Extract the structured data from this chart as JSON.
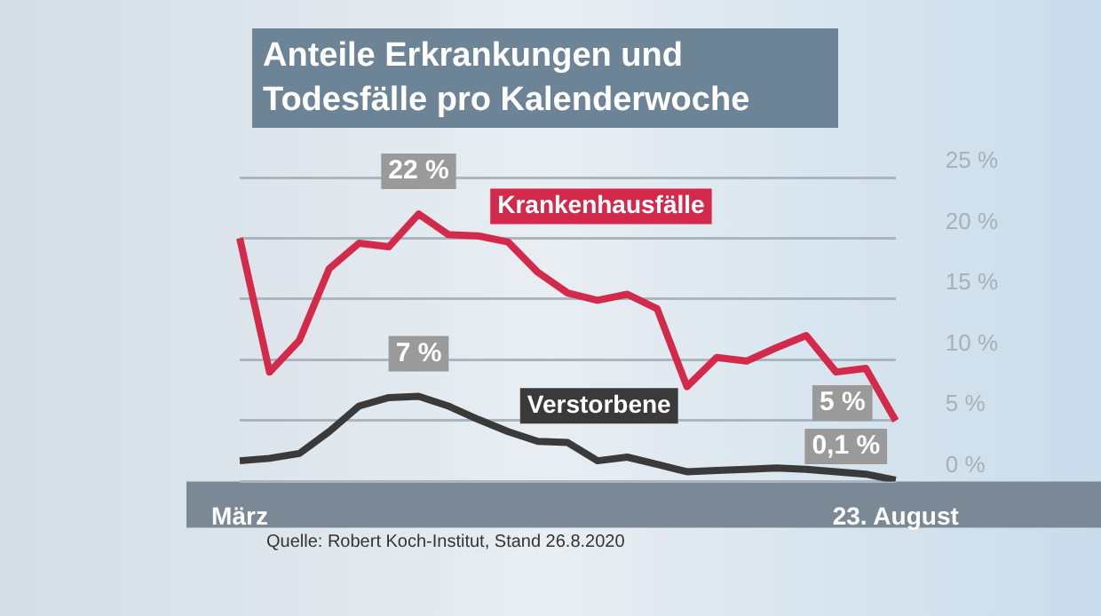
{
  "chart_data": {
    "type": "line",
    "title": "Anteile Erkrankungen und Todesfälle pro Kalenderwoche",
    "categories": [
      "März",
      null,
      null,
      null,
      null,
      null,
      null,
      null,
      null,
      null,
      null,
      null,
      null,
      null,
      null,
      null,
      null,
      null,
      null,
      null,
      null,
      null,
      "23. August"
    ],
    "series": [
      {
        "name": "Krankenhausfälle",
        "color": "#d3294b",
        "values": [
          20,
          9,
          11.6,
          17.5,
          19.6,
          19.3,
          22,
          20.3,
          20.2,
          19.7,
          17.2,
          15.5,
          14.9,
          15.4,
          14.2,
          7.8,
          10.2,
          9.9,
          11,
          12,
          9,
          9.3,
          5
        ],
        "value_labels": [
          null,
          null,
          null,
          null,
          null,
          null,
          "22 %",
          null,
          null,
          null,
          null,
          null,
          null,
          null,
          null,
          null,
          null,
          null,
          null,
          null,
          null,
          null,
          "5 %"
        ]
      },
      {
        "name": "Verstorbene",
        "color": "#3a3a3a",
        "values": [
          1.7,
          1.9,
          2.3,
          4.1,
          6.2,
          6.9,
          7,
          6.2,
          5.1,
          4.1,
          3.3,
          3.2,
          1.7,
          2,
          1.4,
          0.8,
          0.9,
          1,
          1.1,
          1,
          0.8,
          0.6,
          0.1
        ],
        "value_labels": [
          null,
          null,
          null,
          null,
          null,
          null,
          "7 %",
          null,
          null,
          null,
          null,
          null,
          null,
          null,
          null,
          null,
          null,
          null,
          null,
          null,
          null,
          null,
          "0,1 %"
        ]
      }
    ],
    "ylim": [
      0,
      25
    ],
    "yticks": [
      {
        "value": 0,
        "label": "0 %"
      },
      {
        "value": 5,
        "label": "5 %"
      },
      {
        "value": 10,
        "label": "10 %"
      },
      {
        "value": 15,
        "label": "15 %"
      },
      {
        "value": 20,
        "label": "20 %"
      },
      {
        "value": 25,
        "label": "25 %"
      }
    ],
    "grid": "y",
    "legend": false,
    "marker": "none",
    "line_style": "solid",
    "annotations": [
      "Quelle: Robert Koch-Institut, Stand 26.8.2020"
    ]
  }
}
